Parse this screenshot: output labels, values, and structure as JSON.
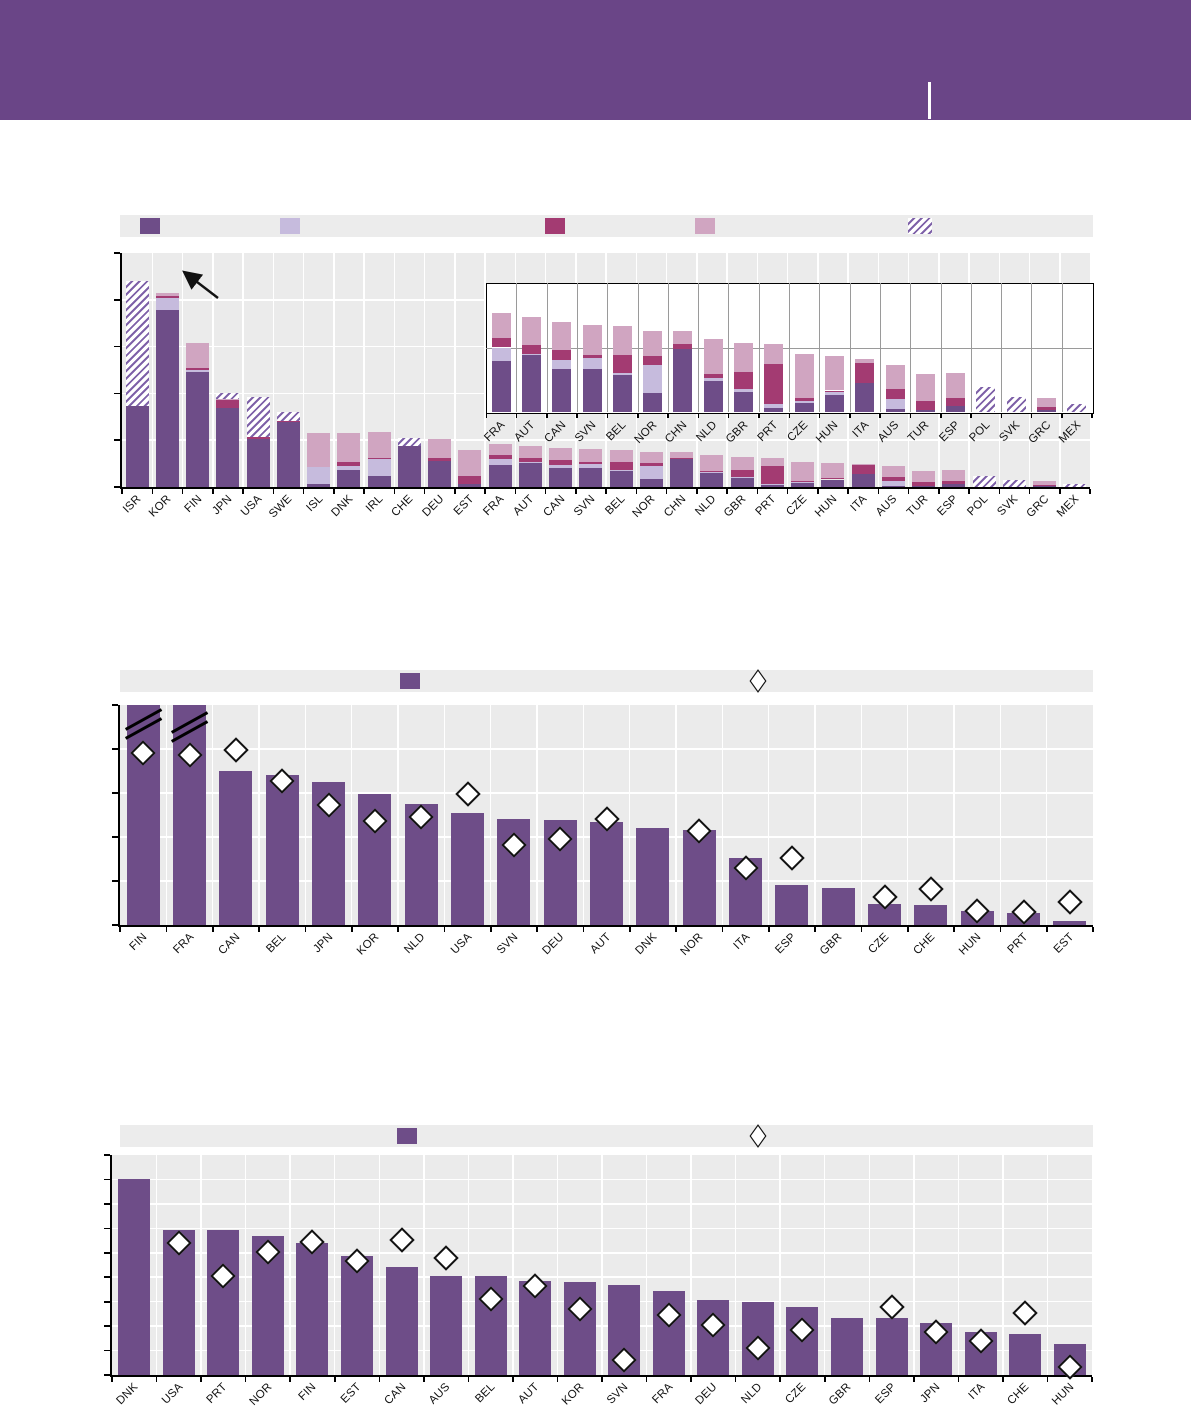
{
  "header": {
    "background": "#6a4587",
    "divider": "white-vertical-line"
  },
  "colors": {
    "header_purple": "#6a4587",
    "bar_purple": "#6e4d88",
    "lavender": "#c6bbdd",
    "crimson": "#a33b72",
    "pink": "#d0a5c1",
    "hatch_stripe": "#7e61a8",
    "plot_background": "#ebebeb",
    "legend_background": "#ececec",
    "gridline": "#ffffff",
    "axis": "#000000",
    "diamond_fill": "#ffffff",
    "diamond_border": "#111111"
  },
  "chart_data": [
    {
      "id": "top-stacked-bar",
      "type": "bar",
      "stacked": true,
      "title": "",
      "xlabel": "",
      "ylabel": "",
      "ylim": [
        0,
        5
      ],
      "ytick_step": 1,
      "grid": true,
      "legend_position": "top",
      "legend_swatches": [
        "solid-purple",
        "solid-lavender",
        "solid-crimson",
        "solid-pink",
        "hatched-purple"
      ],
      "annotations": [
        "arrow-pointing-up-left"
      ],
      "categories": [
        "ISR",
        "KOR",
        "FIN",
        "JPN",
        "USA",
        "SWE",
        "ISL",
        "DNK",
        "IRL",
        "CHE",
        "DEU",
        "EST",
        "FRA",
        "AUT",
        "CAN",
        "SVN",
        "BEL",
        "NOR",
        "CHN",
        "NLD",
        "GBR",
        "PRT",
        "CZE",
        "HUN",
        "ITA",
        "AUS",
        "TUR",
        "ESP",
        "POL",
        "SVK",
        "GRC",
        "MEX"
      ],
      "series": [
        {
          "name": "purple",
          "color": "#6e4d88",
          "values": [
            1.74,
            3.78,
            2.46,
            1.68,
            1.03,
            1.38,
            0.06,
            0.36,
            0.24,
            0.88,
            0.56,
            0.07,
            0.47,
            0.53,
            0.4,
            0.4,
            0.34,
            0.18,
            0.59,
            0.29,
            0.19,
            0.04,
            0.08,
            0.16,
            0.27,
            0.03,
            0.02,
            0.06,
            0,
            0,
            0.02,
            0
          ]
        },
        {
          "name": "lavender",
          "color": "#c6bbdd",
          "values": [
            0,
            0.25,
            0.03,
            0,
            0,
            0,
            0.36,
            0.08,
            0.36,
            0,
            0,
            0,
            0.13,
            0.01,
            0.08,
            0.1,
            0.02,
            0.26,
            0,
            0.03,
            0.02,
            0.03,
            0.02,
            0.03,
            0,
            0.09,
            0,
            0,
            0,
            0,
            0,
            0
          ]
        },
        {
          "name": "crimson",
          "color": "#a33b72",
          "values": [
            0,
            0.05,
            0.06,
            0.18,
            0.03,
            0.02,
            0,
            0.09,
            0.03,
            0,
            0.06,
            0.17,
            0.09,
            0.08,
            0.1,
            0.03,
            0.17,
            0.08,
            0.04,
            0.03,
            0.16,
            0.38,
            0.03,
            0.01,
            0.19,
            0.09,
            0.08,
            0.07,
            0,
            0,
            0.03,
            0
          ]
        },
        {
          "name": "pink",
          "color": "#d0a5c1",
          "values": [
            0,
            0.06,
            0.53,
            0.02,
            0,
            0,
            0.73,
            0.62,
            0.54,
            0,
            0.4,
            0.55,
            0.23,
            0.26,
            0.26,
            0.28,
            0.27,
            0.23,
            0.12,
            0.33,
            0.27,
            0.18,
            0.41,
            0.32,
            0.03,
            0.23,
            0.25,
            0.23,
            0,
            0,
            0.08,
            0
          ]
        },
        {
          "name": "hatched",
          "pattern": "diagonal-stripes",
          "values": [
            2.66,
            0,
            0,
            0.12,
            0.86,
            0.2,
            0,
            0,
            0,
            0.17,
            0,
            0,
            0,
            0,
            0,
            0,
            0,
            0,
            0,
            0,
            0,
            0,
            0,
            0,
            0,
            0,
            0,
            0,
            0.23,
            0.14,
            0,
            0.07
          ]
        }
      ],
      "inset": {
        "categories_start_index": 12,
        "ylim": [
          0,
          1.2
        ],
        "gridline_at": 0.6
      }
    },
    {
      "id": "middle-bar-with-diamonds",
      "type": "bar",
      "title": "",
      "xlabel": "",
      "ylabel": "",
      "ylim": [
        0,
        5
      ],
      "ytick_step": 1,
      "grid": true,
      "legend_position": "top",
      "legend_swatches": [
        "solid-purple-bar",
        "white-diamond-marker"
      ],
      "categories": [
        "FIN",
        "FRA",
        "CAN",
        "BEL",
        "JPN",
        "KOR",
        "NLD",
        "USA",
        "SVN",
        "DEU",
        "AUT",
        "DNK",
        "NOR",
        "ITA",
        "ESP",
        "GBR",
        "CZE",
        "CHE",
        "HUN",
        "PRT",
        "EST"
      ],
      "values": [
        5.45,
        5.45,
        3.51,
        3.41,
        3.25,
        2.97,
        2.74,
        2.54,
        2.41,
        2.39,
        2.33,
        2.2,
        2.16,
        1.52,
        0.91,
        0.85,
        0.47,
        0.45,
        0.32,
        0.27,
        0.08
      ],
      "truncated_bars": [
        "FIN",
        "FRA"
      ],
      "diamond_values": [
        3.92,
        3.86,
        3.98,
        3.28,
        2.73,
        2.36,
        2.46,
        2.97,
        1.82,
        1.95,
        2.42,
        null,
        2.14,
        1.3,
        1.52,
        null,
        0.64,
        0.82,
        0.32,
        0.3,
        0.52
      ]
    },
    {
      "id": "bottom-bar-with-diamonds",
      "type": "bar",
      "title": "",
      "xlabel": "",
      "ylabel": "",
      "ylim": [
        0,
        9
      ],
      "ytick_step": 1,
      "grid": true,
      "legend_position": "top",
      "legend_swatches": [
        "solid-purple-bar",
        "white-diamond-marker"
      ],
      "categories": [
        "DNK",
        "USA",
        "PRT",
        "NOR",
        "FIN",
        "EST",
        "CAN",
        "AUS",
        "BEL",
        "AUT",
        "KOR",
        "SVN",
        "FRA",
        "DEU",
        "NLD",
        "CZE",
        "GBR",
        "ESP",
        "JPN",
        "ITA",
        "CHE",
        "HUN"
      ],
      "values": [
        8.0,
        5.95,
        5.93,
        5.7,
        5.39,
        4.88,
        4.43,
        4.07,
        4.07,
        3.86,
        3.79,
        3.68,
        3.44,
        3.07,
        2.97,
        2.8,
        2.35,
        2.32,
        2.14,
        1.77,
        1.68,
        1.26
      ],
      "diamond_values": [
        null,
        5.39,
        4.07,
        5.02,
        5.43,
        4.66,
        5.52,
        4.8,
        3.1,
        3.66,
        2.7,
        0.61,
        2.45,
        2.05,
        1.12,
        1.84,
        null,
        2.8,
        1.75,
        1.39,
        2.52,
        0.34
      ]
    }
  ]
}
